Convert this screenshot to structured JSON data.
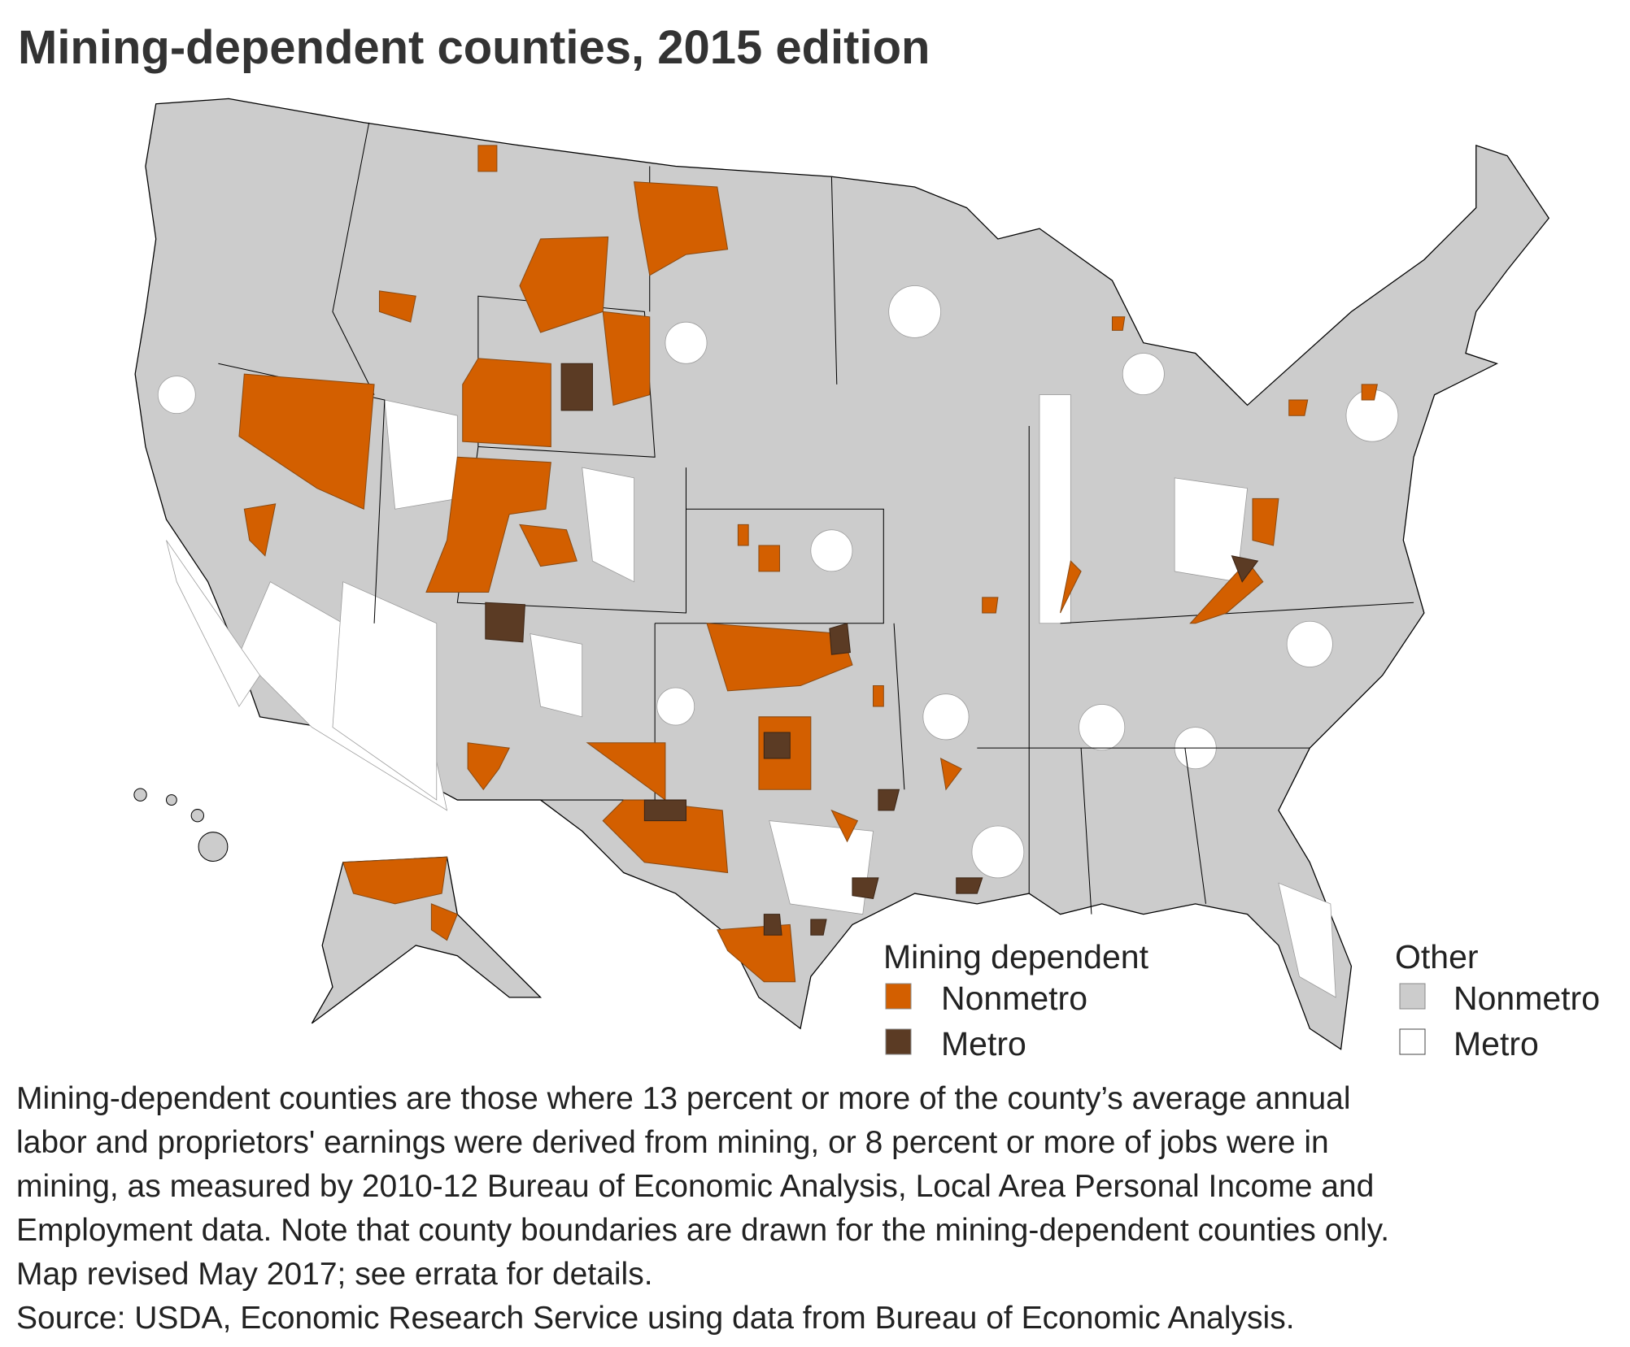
{
  "title": "Mining-dependent counties, 2015 edition",
  "legend": {
    "mining_dependent": {
      "title": "Mining dependent",
      "items": [
        {
          "label": "Nonmetro",
          "color": "#d35f00"
        },
        {
          "label": "Metro",
          "color": "#5b3b24"
        }
      ]
    },
    "other": {
      "title": "Other",
      "items": [
        {
          "label": "Nonmetro",
          "color": "#cccccc"
        },
        {
          "label": "Metro",
          "color": "#ffffff"
        }
      ]
    }
  },
  "note_lines": [
    "Mining-dependent counties are those where 13 percent or more of the county’s average annual",
    "labor and proprietors' earnings were derived from mining, or 8 percent or more of jobs were in",
    "mining, as measured by 2010-12 Bureau of Economic Analysis, Local Area Personal Income and",
    "Employment data. Note that county boundaries are drawn for the mining-dependent counties only.",
    "Map revised May 2017; see errata for details."
  ],
  "source": "Source: USDA, Economic Research Service using data from Bureau of Economic Analysis."
}
